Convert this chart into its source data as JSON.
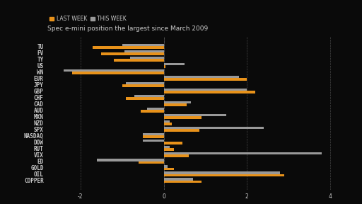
{
  "title": "Spec e-mini position the largest since March 2009",
  "bg_color": "#0a0a0a",
  "text_color": "#cccccc",
  "bar_color_last": "#e8921a",
  "bar_color_this": "#999999",
  "legend_last": "LAST WEEK",
  "legend_this": "THIS WEEK",
  "categories": [
    "TU",
    "FV",
    "TY",
    "US",
    "WN",
    "EUR",
    "JPY",
    "GBP",
    "CHF",
    "CAD",
    "AUD",
    "MXN",
    "NZD",
    "SPX",
    "NASDAQ",
    "DOW",
    "RUT",
    "VIX",
    "ED",
    "GOLD",
    "OIL",
    "COPPER"
  ],
  "last_week": [
    -1.7,
    -1.5,
    -1.2,
    0.05,
    -2.2,
    2.0,
    -1.0,
    2.2,
    -0.9,
    0.55,
    -0.55,
    0.9,
    0.2,
    0.85,
    -0.5,
    0.45,
    0.25,
    0.6,
    -0.6,
    0.25,
    2.9,
    0.9
  ],
  "this_week": [
    -1.0,
    -0.95,
    -0.8,
    0.5,
    -2.4,
    1.8,
    -0.9,
    2.0,
    -0.7,
    0.65,
    -0.4,
    1.5,
    0.15,
    2.4,
    -0.5,
    -0.5,
    0.15,
    3.8,
    -1.6,
    0.1,
    2.8,
    0.7
  ],
  "xlim": [
    -2.8,
    4.5
  ],
  "xticks": [
    -2,
    0,
    2,
    4
  ],
  "bar_height": 0.38,
  "grid_color": "#555555",
  "font_size_labels": 5.5,
  "font_size_title": 6.5,
  "font_size_legend": 5.5,
  "font_size_xticks": 5.5
}
